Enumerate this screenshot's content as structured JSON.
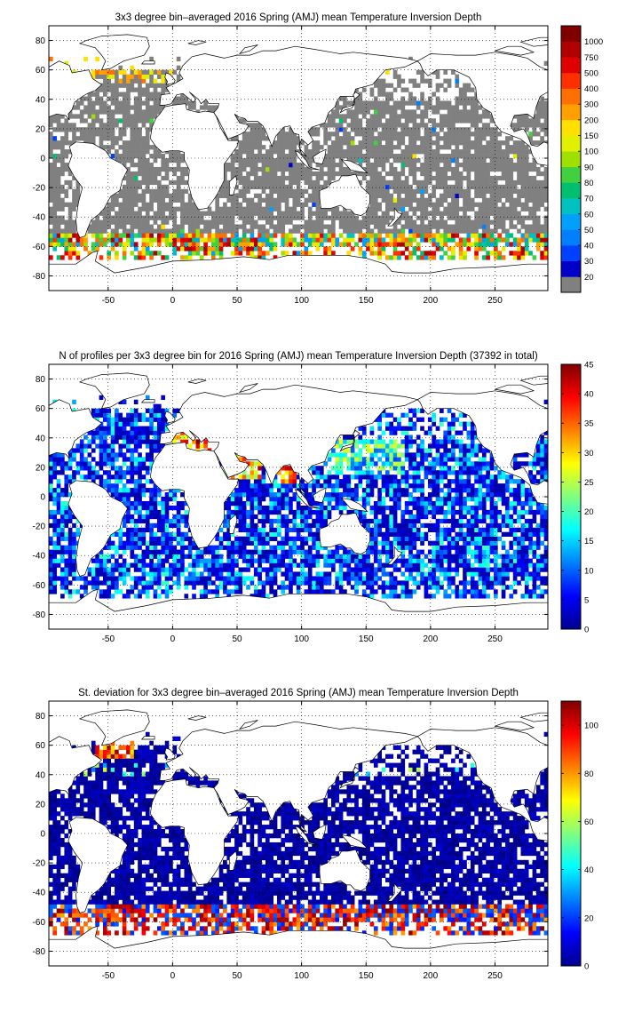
{
  "chart_data": [
    {
      "type": "heatmap",
      "title": "3x3 degree bin–averaged 2016 Spring (AMJ) mean Temperature Inversion Depth",
      "xticks": [
        -50,
        0,
        50,
        100,
        150,
        200,
        250
      ],
      "yticks": [
        80,
        60,
        40,
        20,
        0,
        -20,
        -40,
        -60,
        -80
      ],
      "xlim": [
        -96,
        291
      ],
      "ylim": [
        -90,
        90
      ],
      "bin_size_deg": 3,
      "grid": true,
      "colorbar": {
        "type": "discrete",
        "labels": [
          "20",
          "30",
          "40",
          "50",
          "60",
          "70",
          "80",
          "90",
          "100",
          "150",
          "200",
          "300",
          "400",
          "500",
          "750",
          "1000"
        ],
        "colors": [
          "#808080",
          "#0000c8",
          "#0040ff",
          "#0080ff",
          "#00a0ff",
          "#00c0c0",
          "#00c070",
          "#40d040",
          "#a0e000",
          "#e0f000",
          "#ffe000",
          "#ffa000",
          "#ff7000",
          "#ff3000",
          "#e00000",
          "#b00000",
          "#800000"
        ]
      },
      "summary": "Most ocean bins are gray (lowest class). Warmer colors concentrate along the Southern Ocean band near 60–66S, with scattered higher values in the North Atlantic near Greenland (about 60N) and a few spots near 40N."
    },
    {
      "type": "heatmap",
      "title": "N of profiles per 3x3 degree bin for 2016 Spring (AMJ) mean Temperature Inversion Depth  (37392 in total)",
      "total_profiles": 37392,
      "xticks": [
        -50,
        0,
        50,
        100,
        150,
        200,
        250
      ],
      "yticks": [
        80,
        60,
        40,
        20,
        0,
        -20,
        -40,
        -60,
        -80
      ],
      "xlim": [
        -96,
        291
      ],
      "ylim": [
        -90,
        90
      ],
      "bin_size_deg": 3,
      "grid": true,
      "colorbar": {
        "type": "continuous",
        "range": [
          0,
          45
        ],
        "ticks": [
          "0",
          "5",
          "10",
          "15",
          "20",
          "25",
          "30",
          "35",
          "40",
          "45"
        ],
        "colormap": "jet"
      },
      "summary": "Most bins hold 2–15 profiles. High counts (30–45) in the Mediterranean (about 36–42N, 0–35E), the Arabian Sea / Red Sea region (about 20–28N, 40–70E), the Bay of Bengal, and parts of the western Pacific."
    },
    {
      "type": "heatmap",
      "title": "St. deviation for 3x3 degree bin–averaged 2016 Spring (AMJ) mean Temperature Inversion Depth",
      "xticks": [
        -50,
        0,
        50,
        100,
        150,
        200,
        250
      ],
      "yticks": [
        80,
        60,
        40,
        20,
        0,
        -20,
        -40,
        -60,
        -80
      ],
      "xlim": [
        -96,
        291
      ],
      "ylim": [
        -90,
        90
      ],
      "bin_size_deg": 3,
      "grid": true,
      "colorbar": {
        "type": "continuous",
        "range": [
          0,
          110
        ],
        "ticks": [
          "0",
          "20",
          "40",
          "60",
          "80",
          "100"
        ],
        "colormap": "jet"
      },
      "summary": "Nearly all bins are dark blue (near 0). High standard deviations (80–110) in the Southern Ocean near 60–66S, and the North Atlantic near Greenland (about 60N)."
    }
  ]
}
